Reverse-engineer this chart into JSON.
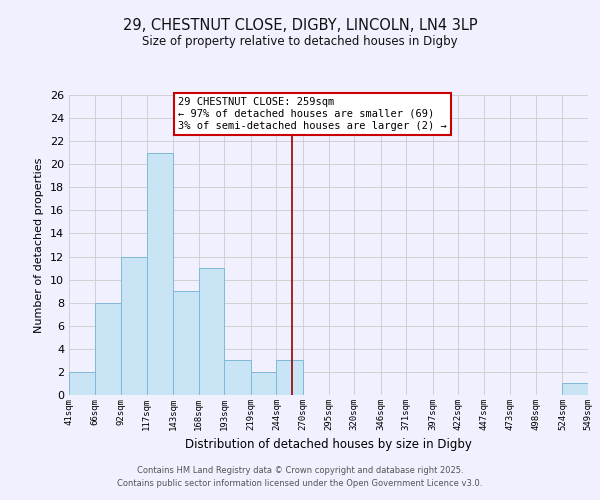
{
  "title": "29, CHESTNUT CLOSE, DIGBY, LINCOLN, LN4 3LP",
  "subtitle": "Size of property relative to detached houses in Digby",
  "xlabel": "Distribution of detached houses by size in Digby",
  "ylabel": "Number of detached properties",
  "bin_edges": [
    41,
    66,
    92,
    117,
    143,
    168,
    193,
    219,
    244,
    270,
    295,
    320,
    346,
    371,
    397,
    422,
    447,
    473,
    498,
    524,
    549
  ],
  "bin_labels": [
    "41sqm",
    "66sqm",
    "92sqm",
    "117sqm",
    "143sqm",
    "168sqm",
    "193sqm",
    "219sqm",
    "244sqm",
    "270sqm",
    "295sqm",
    "320sqm",
    "346sqm",
    "371sqm",
    "397sqm",
    "422sqm",
    "447sqm",
    "473sqm",
    "498sqm",
    "524sqm",
    "549sqm"
  ],
  "counts": [
    2,
    8,
    12,
    21,
    9,
    11,
    3,
    2,
    3,
    0,
    0,
    0,
    0,
    0,
    0,
    0,
    0,
    0,
    0,
    1
  ],
  "bar_color": "#c8e4f5",
  "bar_edge_color": "#7fb8d8",
  "grid_color": "#cccccc",
  "background_color": "#f0f0ff",
  "vline_x": 259,
  "vline_color": "#990000",
  "annotation_title": "29 CHESTNUT CLOSE: 259sqm",
  "annotation_line1": "← 97% of detached houses are smaller (69)",
  "annotation_line2": "3% of semi-detached houses are larger (2) →",
  "annotation_box_facecolor": "#ffffff",
  "annotation_box_edgecolor": "#cc0000",
  "ylim": [
    0,
    26
  ],
  "yticks": [
    0,
    2,
    4,
    6,
    8,
    10,
    12,
    14,
    16,
    18,
    20,
    22,
    24,
    26
  ],
  "footer_line1": "Contains HM Land Registry data © Crown copyright and database right 2025.",
  "footer_line2": "Contains public sector information licensed under the Open Government Licence v3.0."
}
